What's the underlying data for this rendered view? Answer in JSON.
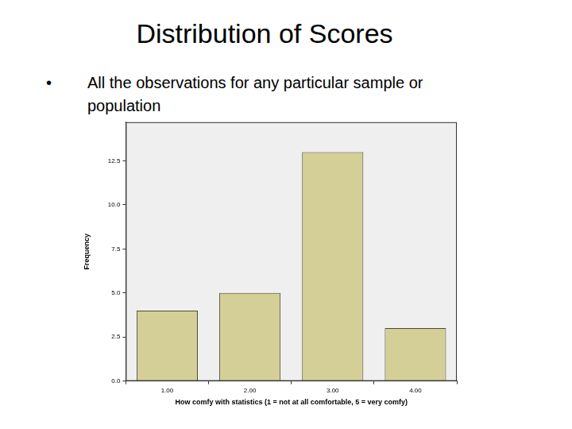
{
  "slide": {
    "title": "Distribution of Scores",
    "bullets": [
      "All the observations for any particular sample or population"
    ]
  },
  "chart_data": {
    "type": "bar",
    "x_label": "How comfy with statistics (1 = not at all comfortable, 5 = very comfy)",
    "y_label": "Frequency",
    "categories": [
      "1.00",
      "2.00",
      "3.00",
      "4.00"
    ],
    "values": [
      4,
      5,
      13,
      3
    ],
    "color": "#d3cf97",
    "ylim": [
      0,
      14.7
    ],
    "yticks": [
      {
        "value": 0,
        "label": "0.0"
      },
      2.5,
      {
        "value": 5,
        "label": "5.0"
      },
      7.5,
      {
        "value": 10,
        "label": "10.0"
      },
      12.5
    ],
    "grid": false
  }
}
